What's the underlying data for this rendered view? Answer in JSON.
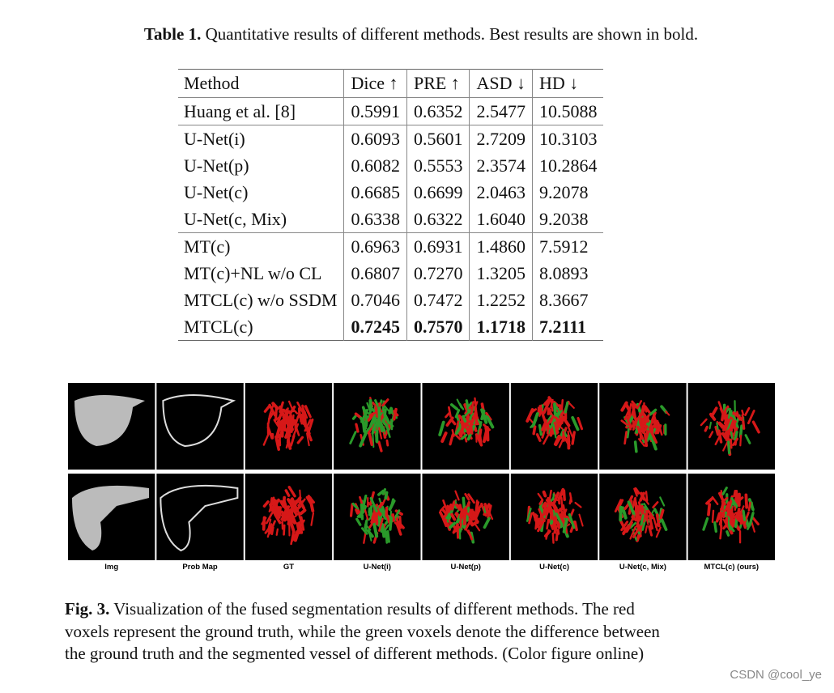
{
  "table_caption": {
    "label": "Table 1.",
    "text": " Quantitative results of different methods. Best results are shown in bold."
  },
  "table": {
    "header": [
      "Method",
      "Dice ↑",
      "PRE ↑",
      "ASD ↓",
      "HD ↓"
    ],
    "groups": [
      [
        [
          "Huang et al. [8]",
          "0.5991",
          "0.6352",
          "2.5477",
          "10.5088"
        ]
      ],
      [
        [
          "U-Net(i)",
          "0.6093",
          "0.5601",
          "2.7209",
          "10.3103"
        ],
        [
          "U-Net(p)",
          "0.6082",
          "0.5553",
          "2.3574",
          "10.2864"
        ],
        [
          "U-Net(c)",
          "0.6685",
          "0.6699",
          "2.0463",
          "9.2078"
        ],
        [
          "U-Net(c, Mix)",
          "0.6338",
          "0.6322",
          "1.6040",
          "9.2038"
        ]
      ],
      [
        [
          "MT(c)",
          "0.6963",
          "0.6931",
          "1.4860",
          "7.5912"
        ],
        [
          "MT(c)+NL w/o CL",
          "0.6807",
          "0.7270",
          "1.3205",
          "8.0893"
        ],
        [
          "MTCL(c) w/o SSDM",
          "0.7046",
          "0.7472",
          "1.2252",
          "8.3667"
        ],
        [
          "MTCL(c)",
          "0.7245",
          "0.7570",
          "1.1718",
          "7.2111"
        ]
      ]
    ]
  },
  "figure": {
    "labels": [
      "Img",
      "Prob Map",
      "GT",
      "U-Net(i)",
      "U-Net(p)",
      "U-Net(c)",
      "U-Net(c, Mix)",
      "MTCL(c) (ours)"
    ]
  },
  "figure_caption": {
    "label": "Fig. 3.",
    "lines": [
      " Visualization of the fused segmentation results of different methods. The red",
      "voxels represent the ground truth, while the green voxels denote the difference between",
      "the ground truth and the segmented vessel of different methods. (Color figure online)"
    ]
  },
  "watermark": "CSDN @cool_ye"
}
